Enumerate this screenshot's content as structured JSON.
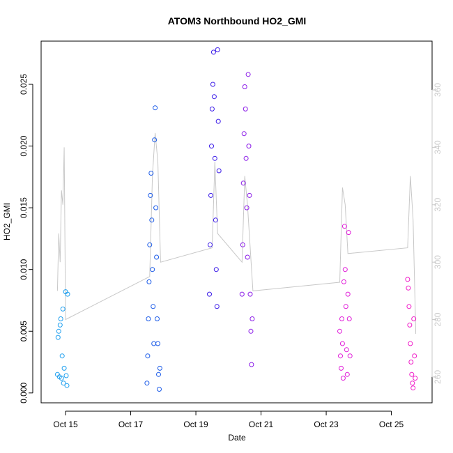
{
  "chart_data": {
    "type": "scatter",
    "title": "ATOM3 Northbound HO2_GMI",
    "xlabel": "Date",
    "ylabel": "HO2_GMI",
    "x_ticks": [
      "Oct 15",
      "Oct 17",
      "Oct 19",
      "Oct 21",
      "Oct 23",
      "Oct 25"
    ],
    "x_range": [
      "2017-10-14 06:00",
      "2017-10-26 06:00"
    ],
    "y_ticks": [
      "0.000",
      "0.005",
      "0.010",
      "0.015",
      "0.020",
      "0.025"
    ],
    "ylim": [
      -0.0008,
      0.0285
    ],
    "y2_ticks": [
      "260",
      "280",
      "300",
      "320",
      "340",
      "360"
    ],
    "y2lim": [
      251,
      377
    ],
    "colors": {
      "frame": "#000000",
      "secondary_line": "#c8c8c8",
      "secondary_axis": "#c8c8c8",
      "point_gradient": [
        "#1e9fef",
        "#1a3fea",
        "#5a1ae8",
        "#a01ae8",
        "#e01ad8",
        "#f01ac8"
      ]
    },
    "series": [
      {
        "flight": 1,
        "color": "#1e9fef",
        "points": [
          [
            "2017-10-14 18:00",
            0.0015
          ],
          [
            "2017-10-14 18:30",
            0.0045
          ],
          [
            "2017-10-14 19:00",
            0.005
          ],
          [
            "2017-10-14 19:30",
            0.0013
          ],
          [
            "2017-10-14 20:00",
            0.0055
          ],
          [
            "2017-10-14 20:30",
            0.006
          ],
          [
            "2017-10-14 21:00",
            0.0012
          ],
          [
            "2017-10-14 21:30",
            0.003
          ],
          [
            "2017-10-14 22:00",
            0.0068
          ],
          [
            "2017-10-14 22:30",
            0.0008
          ],
          [
            "2017-10-14 23:00",
            0.002
          ],
          [
            "2017-10-15 00:00",
            0.0082
          ],
          [
            "2017-10-15 00:30",
            0.0014
          ],
          [
            "2017-10-15 01:00",
            0.0006
          ],
          [
            "2017-10-15 01:30",
            0.008
          ]
        ]
      },
      {
        "flight": 2,
        "color": "#1a5ae8",
        "points": [
          [
            "2017-10-17 12:00",
            0.0008
          ],
          [
            "2017-10-17 12:30",
            0.003
          ],
          [
            "2017-10-17 13:00",
            0.006
          ],
          [
            "2017-10-17 13:30",
            0.009
          ],
          [
            "2017-10-17 14:00",
            0.012
          ],
          [
            "2017-10-17 14:30",
            0.016
          ],
          [
            "2017-10-17 15:00",
            0.0178
          ],
          [
            "2017-10-17 15:30",
            0.014
          ],
          [
            "2017-10-17 16:00",
            0.01
          ],
          [
            "2017-10-17 16:30",
            0.007
          ],
          [
            "2017-10-17 17:00",
            0.004
          ],
          [
            "2017-10-17 17:30",
            0.0205
          ],
          [
            "2017-10-17 18:00",
            0.0231
          ],
          [
            "2017-10-17 18:30",
            0.015
          ],
          [
            "2017-10-17 19:00",
            0.011
          ],
          [
            "2017-10-17 19:30",
            0.006
          ],
          [
            "2017-10-17 20:00",
            0.004
          ],
          [
            "2017-10-17 20:30",
            0.0015
          ],
          [
            "2017-10-17 21:00",
            0.0003
          ],
          [
            "2017-10-17 21:30",
            0.002
          ]
        ]
      },
      {
        "flight": 3,
        "color": "#3a1ae8",
        "points": [
          [
            "2017-10-19 10:00",
            0.008
          ],
          [
            "2017-10-19 10:30",
            0.012
          ],
          [
            "2017-10-19 11:00",
            0.016
          ],
          [
            "2017-10-19 11:30",
            0.02
          ],
          [
            "2017-10-19 12:00",
            0.023
          ],
          [
            "2017-10-19 12:30",
            0.025
          ],
          [
            "2017-10-19 13:00",
            0.0276
          ],
          [
            "2017-10-19 13:30",
            0.024
          ],
          [
            "2017-10-19 14:00",
            0.019
          ],
          [
            "2017-10-19 14:30",
            0.014
          ],
          [
            "2017-10-19 15:00",
            0.01
          ],
          [
            "2017-10-19 15:30",
            0.007
          ],
          [
            "2017-10-19 16:00",
            0.0278
          ],
          [
            "2017-10-19 16:30",
            0.022
          ],
          [
            "2017-10-19 17:00",
            0.018
          ]
        ]
      },
      {
        "flight": 4,
        "color": "#8a1ae8",
        "points": [
          [
            "2017-10-20 10:00",
            0.008
          ],
          [
            "2017-10-20 10:30",
            0.012
          ],
          [
            "2017-10-20 11:00",
            0.017
          ],
          [
            "2017-10-20 11:30",
            0.021
          ],
          [
            "2017-10-20 12:00",
            0.0248
          ],
          [
            "2017-10-20 12:30",
            0.023
          ],
          [
            "2017-10-20 13:00",
            0.019
          ],
          [
            "2017-10-20 13:30",
            0.015
          ],
          [
            "2017-10-20 14:00",
            0.011
          ],
          [
            "2017-10-20 14:30",
            0.0258
          ],
          [
            "2017-10-20 15:00",
            0.02
          ],
          [
            "2017-10-20 15:30",
            0.016
          ],
          [
            "2017-10-20 16:00",
            0.008
          ],
          [
            "2017-10-20 16:30",
            0.005
          ],
          [
            "2017-10-20 17:00",
            0.0023
          ],
          [
            "2017-10-20 17:30",
            0.006
          ]
        ]
      },
      {
        "flight": 5,
        "color": "#e01ad8",
        "points": [
          [
            "2017-10-23 10:00",
            0.005
          ],
          [
            "2017-10-23 10:30",
            0.003
          ],
          [
            "2017-10-23 11:00",
            0.002
          ],
          [
            "2017-10-23 11:30",
            0.006
          ],
          [
            "2017-10-23 12:00",
            0.004
          ],
          [
            "2017-10-23 12:30",
            0.0012
          ],
          [
            "2017-10-23 13:00",
            0.009
          ],
          [
            "2017-10-23 13:30",
            0.0135
          ],
          [
            "2017-10-23 14:00",
            0.01
          ],
          [
            "2017-10-23 14:30",
            0.007
          ],
          [
            "2017-10-23 15:00",
            0.0035
          ],
          [
            "2017-10-23 15:30",
            0.0015
          ],
          [
            "2017-10-23 16:00",
            0.008
          ],
          [
            "2017-10-23 16:30",
            0.013
          ],
          [
            "2017-10-23 17:00",
            0.006
          ],
          [
            "2017-10-23 17:30",
            0.003
          ]
        ]
      },
      {
        "flight": 6,
        "color": "#f01ac8",
        "points": [
          [
            "2017-10-25 12:00",
            0.0092
          ],
          [
            "2017-10-25 12:30",
            0.0085
          ],
          [
            "2017-10-25 13:00",
            0.007
          ],
          [
            "2017-10-25 13:30",
            0.0055
          ],
          [
            "2017-10-25 14:00",
            0.004
          ],
          [
            "2017-10-25 14:30",
            0.0025
          ],
          [
            "2017-10-25 15:00",
            0.0015
          ],
          [
            "2017-10-25 15:30",
            0.0008
          ],
          [
            "2017-10-25 16:00",
            0.0004
          ],
          [
            "2017-10-25 16:30",
            0.006
          ],
          [
            "2017-10-25 17:00",
            0.003
          ],
          [
            "2017-10-25 17:30",
            0.0012
          ]
        ]
      }
    ],
    "secondary_line": {
      "axis": "right",
      "points": [
        [
          "2017-10-14 18:00",
          290
        ],
        [
          "2017-10-14 19:00",
          310
        ],
        [
          "2017-10-14 20:00",
          300
        ],
        [
          "2017-10-14 21:00",
          325
        ],
        [
          "2017-10-14 22:00",
          320
        ],
        [
          "2017-10-14 23:00",
          340
        ],
        [
          "2017-10-15 00:00",
          280
        ],
        [
          "2017-10-17 14:00",
          295
        ],
        [
          "2017-10-17 16:00",
          330
        ],
        [
          "2017-10-17 18:00",
          345
        ],
        [
          "2017-10-17 20:00",
          335
        ],
        [
          "2017-10-17 22:00",
          300
        ],
        [
          "2017-10-19 12:00",
          305
        ],
        [
          "2017-10-19 14:00",
          335
        ],
        [
          "2017-10-19 16:00",
          310
        ],
        [
          "2017-10-20 10:00",
          300
        ],
        [
          "2017-10-20 12:00",
          330
        ],
        [
          "2017-10-20 14:00",
          320
        ],
        [
          "2017-10-20 16:00",
          305
        ],
        [
          "2017-10-20 18:00",
          290
        ],
        [
          "2017-10-23 10:00",
          293
        ],
        [
          "2017-10-23 12:00",
          326
        ],
        [
          "2017-10-23 14:00",
          320
        ],
        [
          "2017-10-23 16:00",
          303
        ],
        [
          "2017-10-25 12:00",
          305
        ],
        [
          "2017-10-25 14:00",
          330
        ],
        [
          "2017-10-25 16:00",
          315
        ],
        [
          "2017-10-25 18:00",
          275
        ]
      ]
    }
  }
}
